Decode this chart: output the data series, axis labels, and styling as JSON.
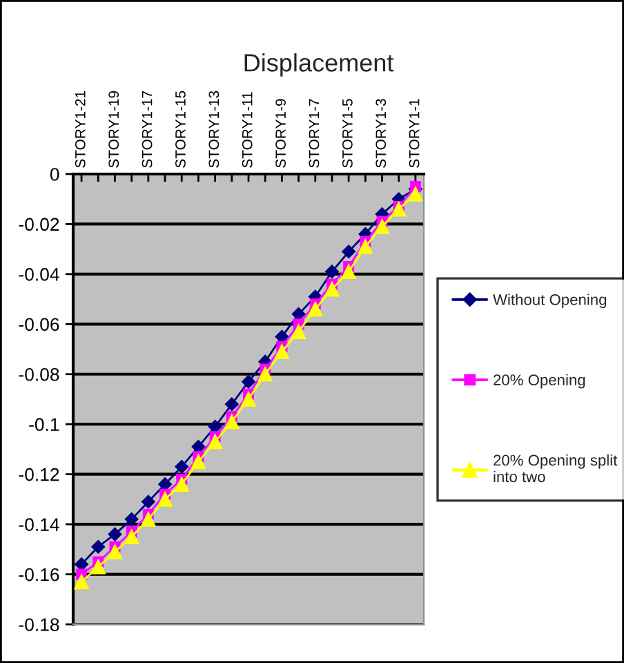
{
  "chart_data": {
    "type": "line",
    "title": "Displacement",
    "categories": [
      "STORY1-21",
      null,
      "STORY1-19",
      null,
      "STORY1-17",
      null,
      "STORY1-15",
      null,
      "STORY1-13",
      null,
      "STORY1-11",
      null,
      "STORY1-9",
      null,
      "STORY1-7",
      null,
      "STORY1-5",
      null,
      "STORY1-3",
      null,
      "STORY1-1"
    ],
    "series": [
      {
        "name": "Without Opening",
        "color": "#000080",
        "marker": "diamond",
        "values": [
          -0.156,
          -0.149,
          -0.144,
          -0.138,
          -0.131,
          -0.124,
          -0.117,
          -0.109,
          -0.101,
          -0.092,
          -0.083,
          -0.075,
          -0.065,
          -0.056,
          -0.049,
          -0.039,
          -0.031,
          -0.024,
          -0.016,
          -0.01,
          -0.006
        ]
      },
      {
        "name": "20% Opening",
        "color": "#ff00ff",
        "marker": "square",
        "values": [
          -0.16,
          -0.155,
          -0.149,
          -0.143,
          -0.136,
          -0.128,
          -0.122,
          -0.113,
          -0.105,
          -0.097,
          -0.088,
          -0.078,
          -0.069,
          -0.06,
          -0.052,
          -0.044,
          -0.037,
          -0.027,
          -0.019,
          -0.013,
          -0.005
        ]
      },
      {
        "name": "20% Opening split into two",
        "color": "#ffff00",
        "marker": "triangle",
        "values": [
          -0.163,
          -0.157,
          -0.151,
          -0.145,
          -0.138,
          -0.13,
          -0.124,
          -0.115,
          -0.107,
          -0.099,
          -0.09,
          -0.08,
          -0.071,
          -0.063,
          -0.054,
          -0.046,
          -0.039,
          -0.029,
          -0.021,
          -0.014,
          -0.008
        ]
      }
    ],
    "ylim": [
      -0.18,
      0
    ],
    "yticks": [
      -0.18,
      -0.16,
      -0.14,
      -0.12,
      -0.1,
      -0.08,
      -0.06,
      -0.04,
      -0.02,
      0
    ],
    "grid": "y",
    "legend": "right",
    "line_style": "solid"
  }
}
